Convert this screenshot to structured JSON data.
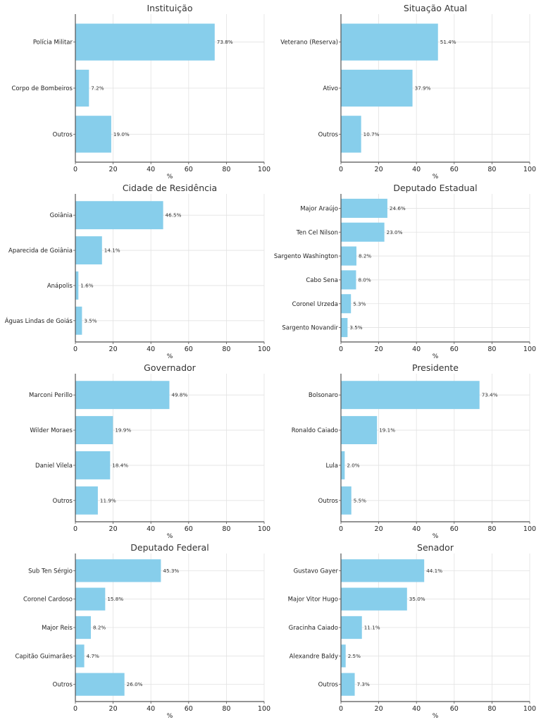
{
  "chart_data": [
    {
      "type": "bar",
      "orientation": "horizontal",
      "title": "Instituição",
      "xlabel": "%",
      "ylabel": "",
      "xlim": [
        0,
        100
      ],
      "xticks": [
        "0",
        "20",
        "40",
        "60",
        "80",
        "100"
      ],
      "grid": true,
      "categories": [
        "Polícia Militar",
        "Corpo de Bombeiros",
        "Outros"
      ],
      "values": [
        73.8,
        7.2,
        19.0
      ],
      "labels": [
        "73.8%",
        "7.2%",
        "19.0%"
      ]
    },
    {
      "type": "bar",
      "orientation": "horizontal",
      "title": "Situação Atual",
      "xlabel": "%",
      "ylabel": "",
      "xlim": [
        0,
        100
      ],
      "xticks": [
        "0",
        "20",
        "40",
        "60",
        "80",
        "100"
      ],
      "grid": true,
      "categories": [
        "Veterano (Reserva)",
        "Ativo",
        "Outros"
      ],
      "values": [
        51.4,
        37.9,
        10.7
      ],
      "labels": [
        "51.4%",
        "37.9%",
        "10.7%"
      ]
    },
    {
      "type": "bar",
      "orientation": "horizontal",
      "title": "Cidade de Residência",
      "xlabel": "%",
      "ylabel": "",
      "xlim": [
        0,
        100
      ],
      "xticks": [
        "0",
        "20",
        "40",
        "60",
        "80",
        "100"
      ],
      "grid": true,
      "categories": [
        "Goiânia",
        "Aparecida de Goiânia",
        "Anápolis",
        "Águas Lindas de Goiás"
      ],
      "values": [
        46.5,
        14.1,
        1.6,
        3.5
      ],
      "labels": [
        "46.5%",
        "14.1%",
        "1.6%",
        "3.5%"
      ]
    },
    {
      "type": "bar",
      "orientation": "horizontal",
      "title": "Deputado Estadual",
      "xlabel": "%",
      "ylabel": "",
      "xlim": [
        0,
        100
      ],
      "xticks": [
        "0",
        "20",
        "40",
        "60",
        "80",
        "100"
      ],
      "grid": true,
      "categories": [
        "Major Araújo",
        "Ten Cel Nilson",
        "Sargento Washington",
        "Cabo Sena",
        "Coronel Urzeda",
        "Sargento Novandir"
      ],
      "values": [
        24.6,
        23.0,
        8.2,
        8.0,
        5.3,
        3.5
      ],
      "labels": [
        "24.6%",
        "23.0%",
        "8.2%",
        "8.0%",
        "5.3%",
        "3.5%"
      ]
    },
    {
      "type": "bar",
      "orientation": "horizontal",
      "title": "Governador",
      "xlabel": "%",
      "ylabel": "",
      "xlim": [
        0,
        100
      ],
      "xticks": [
        "0",
        "20",
        "40",
        "60",
        "80",
        "100"
      ],
      "grid": true,
      "categories": [
        "Marconi Perillo",
        "Wilder Moraes",
        "Daniel Vilela",
        "Outros"
      ],
      "values": [
        49.8,
        19.9,
        18.4,
        11.9
      ],
      "labels": [
        "49.8%",
        "19.9%",
        "18.4%",
        "11.9%"
      ]
    },
    {
      "type": "bar",
      "orientation": "horizontal",
      "title": "Presidente",
      "xlabel": "%",
      "ylabel": "",
      "xlim": [
        0,
        100
      ],
      "xticks": [
        "0",
        "20",
        "40",
        "60",
        "80",
        "100"
      ],
      "grid": true,
      "categories": [
        "Bolsonaro",
        "Ronaldo Caiado",
        "Lula",
        "Outros"
      ],
      "values": [
        73.4,
        19.1,
        2.0,
        5.5
      ],
      "labels": [
        "73.4%",
        "19.1%",
        "2.0%",
        "5.5%"
      ]
    },
    {
      "type": "bar",
      "orientation": "horizontal",
      "title": "Deputado Federal",
      "xlabel": "%",
      "ylabel": "",
      "xlim": [
        0,
        100
      ],
      "xticks": [
        "0",
        "20",
        "40",
        "60",
        "80",
        "100"
      ],
      "grid": true,
      "categories": [
        "Sub Ten Sérgio",
        "Coronel Cardoso",
        "Major Reis",
        "Capitão Guimarães",
        "Outros"
      ],
      "values": [
        45.3,
        15.8,
        8.2,
        4.7,
        26.0
      ],
      "labels": [
        "45.3%",
        "15.8%",
        "8.2%",
        "4.7%",
        "26.0%"
      ]
    },
    {
      "type": "bar",
      "orientation": "horizontal",
      "title": "Senador",
      "xlabel": "%",
      "ylabel": "",
      "xlim": [
        0,
        100
      ],
      "xticks": [
        "0",
        "20",
        "40",
        "60",
        "80",
        "100"
      ],
      "grid": true,
      "categories": [
        "Gustavo Gayer",
        "Major Vitor Hugo",
        "Gracinha Caiado",
        "Alexandre Baldy",
        "Outros"
      ],
      "values": [
        44.1,
        35.0,
        11.1,
        2.5,
        7.3
      ],
      "labels": [
        "44.1%",
        "35.0%",
        "11.1%",
        "2.5%",
        "7.3%"
      ]
    }
  ],
  "colors": {
    "bar": "#87ceeb",
    "grid": "#e2e2e2",
    "axis": "#555555",
    "text": "#222222"
  }
}
